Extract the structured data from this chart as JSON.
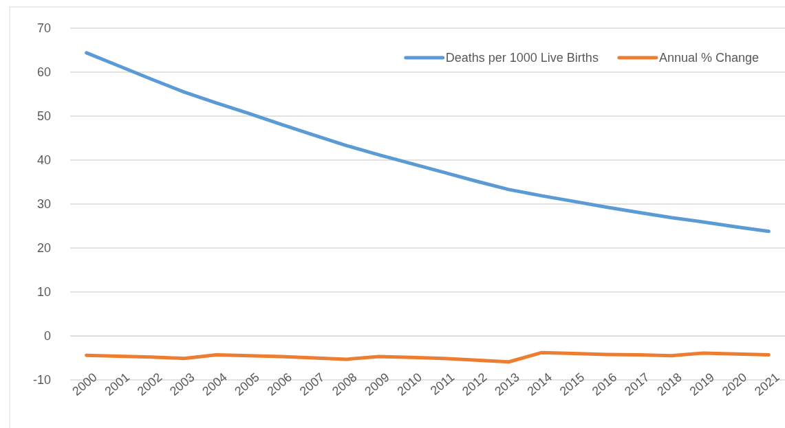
{
  "chart_data": {
    "type": "line",
    "categories": [
      "2000",
      "2001",
      "2002",
      "2003",
      "2004",
      "2005",
      "2006",
      "2007",
      "2008",
      "2009",
      "2010",
      "2011",
      "2012",
      "2013",
      "2014",
      "2015",
      "2016",
      "2017",
      "2018",
      "2019",
      "2020",
      "2021"
    ],
    "series": [
      {
        "name": "Deaths per 1000 Live Births",
        "color": "#5b9bd5",
        "values": [
          64.4,
          61.4,
          58.4,
          55.5,
          53.0,
          50.6,
          48.1,
          45.7,
          43.3,
          41.2,
          39.2,
          37.2,
          35.2,
          33.3,
          31.9,
          30.6,
          29.3,
          28.1,
          26.9,
          25.9,
          24.8,
          23.8
        ]
      },
      {
        "name": "Annual % Change",
        "color": "#ed7d31",
        "values": [
          -4.4,
          -4.6,
          -4.8,
          -5.1,
          -4.3,
          -4.5,
          -4.7,
          -5.0,
          -5.3,
          -4.7,
          -4.9,
          -5.1,
          -5.5,
          -5.9,
          -3.8,
          -4.0,
          -4.2,
          -4.3,
          -4.5,
          -3.9,
          -4.1,
          -4.3
        ]
      }
    ],
    "ylim": [
      -10,
      70
    ],
    "yticks": [
      -10,
      0,
      10,
      20,
      30,
      40,
      50,
      60,
      70
    ],
    "grid": "y",
    "legend": "top right",
    "marker": "none",
    "line_style": "solid"
  }
}
